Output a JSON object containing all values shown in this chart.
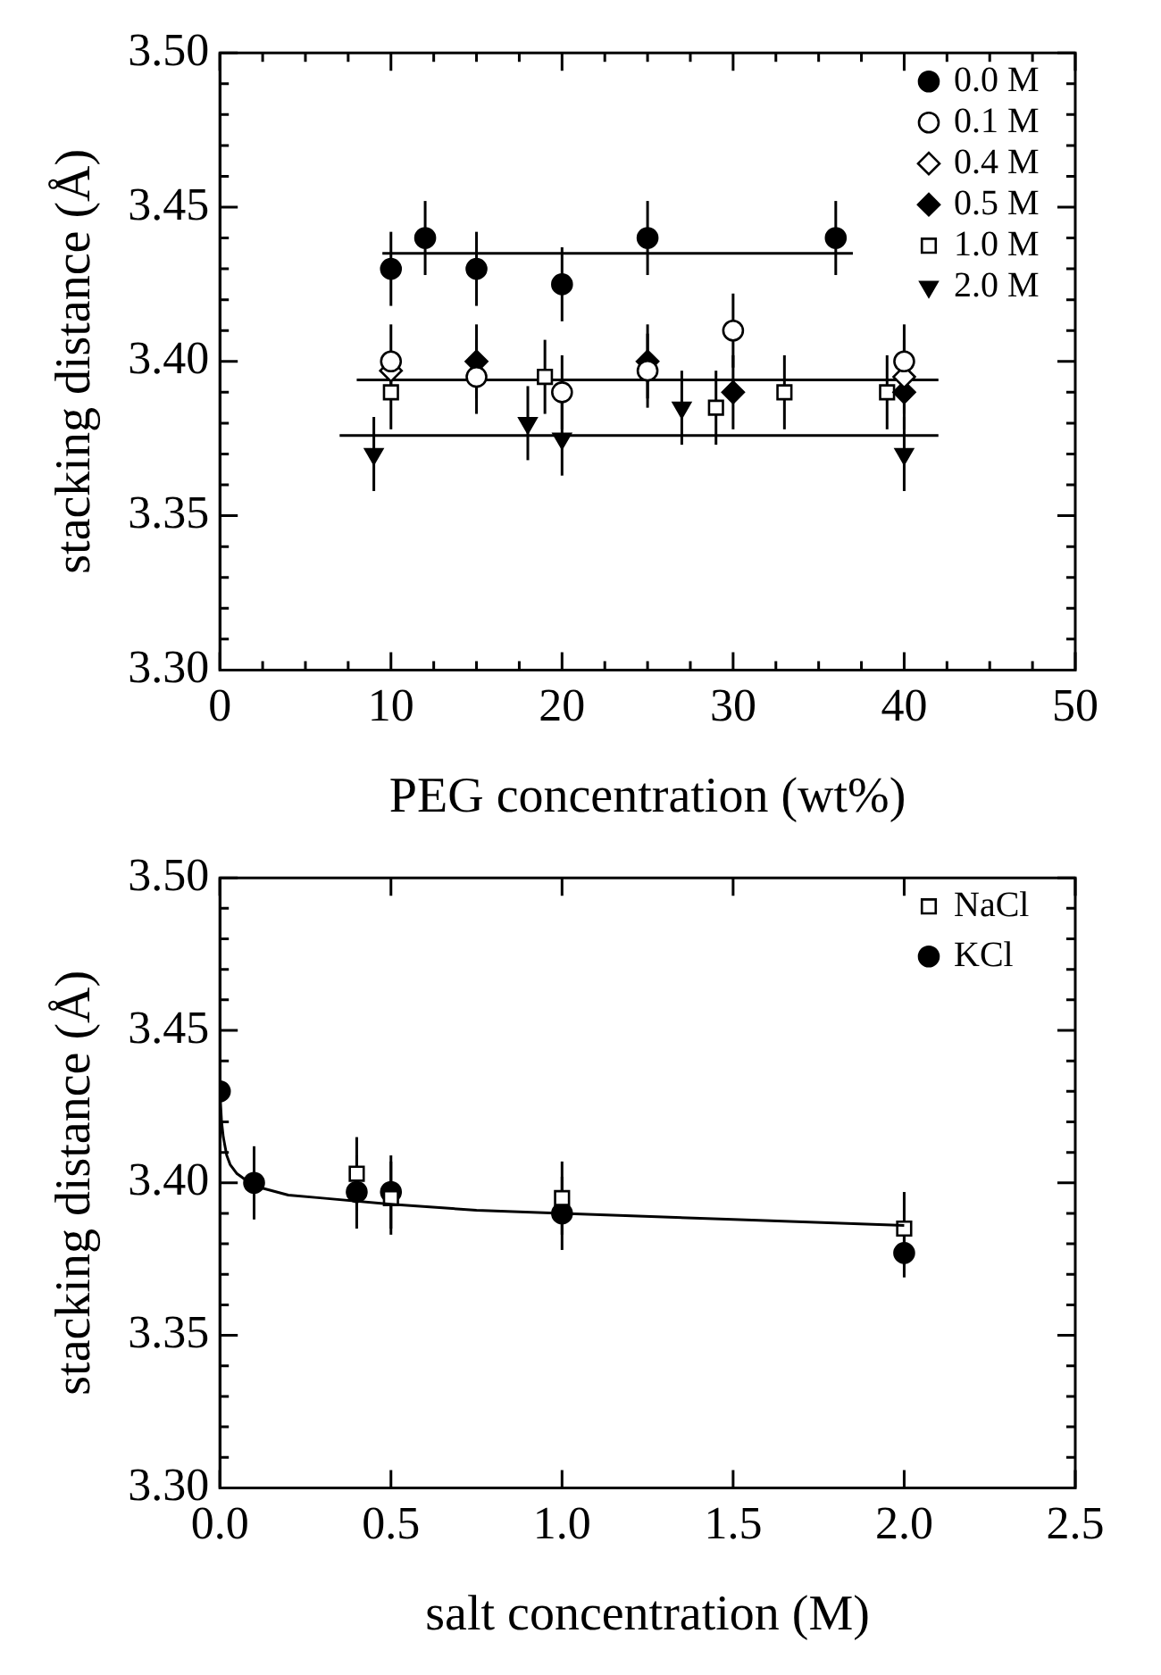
{
  "chart_data": [
    {
      "type": "scatter",
      "xlabel": "PEG concentration (wt%)",
      "ylabel": "stacking distance (Å)",
      "legend": "top right",
      "xlim": [
        0,
        50
      ],
      "xticks": [
        0,
        {
          "value": 2.5,
          "label": null
        },
        {
          "value": 5,
          "label": null
        },
        {
          "value": 7.5,
          "label": null
        },
        10,
        {
          "value": 12.5,
          "label": null
        },
        {
          "value": 15,
          "label": null
        },
        {
          "value": 17.5,
          "label": null
        },
        20,
        {
          "value": 22.5,
          "label": null
        },
        {
          "value": 25,
          "label": null
        },
        {
          "value": 27.5,
          "label": null
        },
        30,
        {
          "value": 32.5,
          "label": null
        },
        {
          "value": 35,
          "label": null
        },
        {
          "value": 37.5,
          "label": null
        },
        40,
        {
          "value": 42.5,
          "label": null
        },
        {
          "value": 45,
          "label": null
        },
        {
          "value": 47.5,
          "label": null
        },
        50
      ],
      "ylim": [
        3.3,
        3.5
      ],
      "yticks": [
        {
          "value": 3.3,
          "label": "3.30"
        },
        {
          "value": 3.31,
          "label": null
        },
        {
          "value": 3.32,
          "label": null
        },
        {
          "value": 3.33,
          "label": null
        },
        {
          "value": 3.34,
          "label": null
        },
        {
          "value": 3.35,
          "label": "3.35"
        },
        {
          "value": 3.36,
          "label": null
        },
        {
          "value": 3.37,
          "label": null
        },
        {
          "value": 3.38,
          "label": null
        },
        {
          "value": 3.39,
          "label": null
        },
        {
          "value": 3.4,
          "label": "3.40"
        },
        {
          "value": 3.41,
          "label": null
        },
        {
          "value": 3.42,
          "label": null
        },
        {
          "value": 3.43,
          "label": null
        },
        {
          "value": 3.44,
          "label": null
        },
        {
          "value": 3.45,
          "label": "3.45"
        },
        {
          "value": 3.46,
          "label": null
        },
        {
          "value": 3.47,
          "label": null
        },
        {
          "value": 3.48,
          "label": null
        },
        {
          "value": 3.49,
          "label": null
        },
        {
          "value": 3.5,
          "label": "3.50"
        }
      ],
      "series": [
        {
          "name": "0.0 M",
          "color": "#000000",
          "marker": "circle",
          "x": [
            10,
            12,
            15,
            20,
            25,
            36
          ],
          "values": [
            3.43,
            3.44,
            3.43,
            3.425,
            3.44,
            3.44
          ],
          "errors": [
            0.012,
            0.012,
            0.012,
            0.012,
            0.012,
            0.012
          ]
        },
        {
          "name": "0.1 M",
          "color": "#ffffff",
          "marker": "circle",
          "x": [
            10,
            15,
            20,
            25,
            30,
            40
          ],
          "values": [
            3.4,
            3.395,
            3.39,
            3.397,
            3.41,
            3.4
          ],
          "errors": [
            0.012,
            0.012,
            0.012,
            0.012,
            0.012,
            0.012
          ]
        },
        {
          "name": "0.4 M",
          "color": "#ffffff",
          "marker": "diamond",
          "x": [
            10,
            40
          ],
          "values": [
            3.397,
            3.395
          ],
          "errors": [
            null,
            0.012
          ]
        },
        {
          "name": "0.5 M",
          "color": "#000000",
          "marker": "diamond",
          "x": [
            15,
            25,
            30,
            40
          ],
          "values": [
            3.4,
            3.4,
            3.39,
            3.39
          ],
          "errors": [
            0.012,
            0.012,
            0.012,
            0.012
          ]
        },
        {
          "name": "1.0 M",
          "color": "#ffffff",
          "marker": "square",
          "x": [
            10,
            19,
            29,
            33,
            39
          ],
          "values": [
            3.39,
            3.395,
            3.385,
            3.39,
            3.39
          ],
          "errors": [
            0.012,
            0.012,
            0.012,
            0.012,
            0.012
          ]
        },
        {
          "name": "2.0 M",
          "color": "#000000",
          "marker": "triangle-down",
          "x": [
            9,
            18,
            20,
            27,
            40
          ],
          "values": [
            3.37,
            3.38,
            3.375,
            3.385,
            3.37
          ],
          "errors": [
            0.012,
            0.012,
            0.012,
            0.012,
            0.012
          ]
        },
        {
          "type": "line",
          "color": "#000000",
          "x": [
            9.5,
            37
          ],
          "values": [
            3.435,
            3.435
          ]
        },
        {
          "type": "line",
          "color": "#000000",
          "x": [
            8,
            42
          ],
          "values": [
            3.394,
            3.394
          ]
        },
        {
          "type": "line",
          "color": "#000000",
          "x": [
            7,
            42
          ],
          "values": [
            3.376,
            3.376
          ]
        }
      ]
    },
    {
      "type": "scatter",
      "xlabel": "salt concentration (M)",
      "ylabel": "stacking distance (Å)",
      "legend": "top right",
      "xlim": [
        0,
        2.5
      ],
      "xticks": [
        {
          "value": 0,
          "label": "0.0"
        },
        {
          "value": 0.5,
          "label": "0.5"
        },
        {
          "value": 1,
          "label": "1.0"
        },
        {
          "value": 1.5,
          "label": "1.5"
        },
        {
          "value": 2,
          "label": "2.0"
        },
        {
          "value": 2.5,
          "label": "2.5"
        }
      ],
      "ylim": [
        3.3,
        3.5
      ],
      "yticks": [
        {
          "value": 3.3,
          "label": "3.30"
        },
        {
          "value": 3.31,
          "label": null
        },
        {
          "value": 3.32,
          "label": null
        },
        {
          "value": 3.33,
          "label": null
        },
        {
          "value": 3.34,
          "label": null
        },
        {
          "value": 3.35,
          "label": "3.35"
        },
        {
          "value": 3.36,
          "label": null
        },
        {
          "value": 3.37,
          "label": null
        },
        {
          "value": 3.38,
          "label": null
        },
        {
          "value": 3.39,
          "label": null
        },
        {
          "value": 3.4,
          "label": "3.40"
        },
        {
          "value": 3.41,
          "label": null
        },
        {
          "value": 3.42,
          "label": null
        },
        {
          "value": 3.43,
          "label": null
        },
        {
          "value": 3.44,
          "label": null
        },
        {
          "value": 3.45,
          "label": "3.45"
        },
        {
          "value": 3.46,
          "label": null
        },
        {
          "value": 3.47,
          "label": null
        },
        {
          "value": 3.48,
          "label": null
        },
        {
          "value": 3.49,
          "label": null
        },
        {
          "value": 3.5,
          "label": "3.50"
        }
      ],
      "series": [
        {
          "type": "line",
          "color": "#000000",
          "x": [
            0,
            0.005,
            0.01,
            0.02,
            0.03,
            0.05,
            0.1,
            0.2,
            0.3,
            0.5,
            0.75,
            1,
            1.5,
            2
          ],
          "values": [
            3.43,
            3.42,
            3.415,
            3.409,
            3.406,
            3.403,
            3.399,
            3.396,
            3.395,
            3.393,
            3.391,
            3.39,
            3.388,
            3.386
          ]
        },
        {
          "name": "NaCl",
          "color": "#ffffff",
          "marker": "square",
          "x": [
            0.4,
            0.5,
            1,
            2
          ],
          "values": [
            3.403,
            3.395,
            3.395,
            3.385
          ],
          "errors": [
            0.012,
            0.012,
            0.012,
            0.012
          ]
        },
        {
          "name": "KCl",
          "color": "#000000",
          "marker": "circle",
          "x": [
            0,
            0.1,
            0.4,
            0.5,
            1,
            2
          ],
          "values": [
            3.43,
            3.4,
            3.397,
            3.397,
            3.39,
            3.377
          ],
          "errors": [
            null,
            0.012,
            0.012,
            0.012,
            0.012,
            0.008
          ]
        }
      ]
    }
  ]
}
